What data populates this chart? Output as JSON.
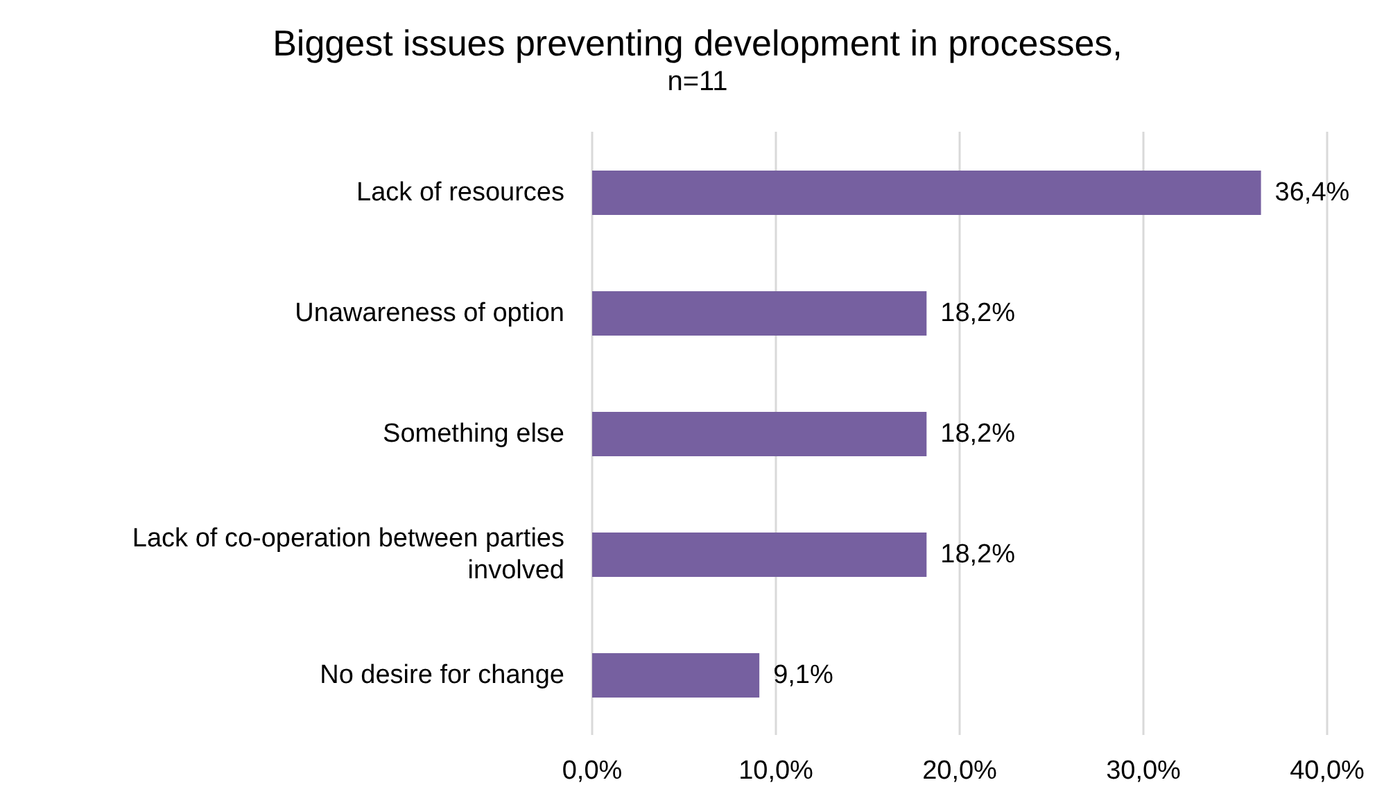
{
  "chart_data": {
    "type": "bar",
    "orientation": "horizontal",
    "title": "Biggest issues preventing development in processes,",
    "subtitle": "n=11",
    "categories": [
      "Lack of resources",
      "Unawareness of option",
      "Something else",
      "Lack of co-operation between parties involved",
      "No desire for change"
    ],
    "values": [
      36.4,
      18.2,
      18.2,
      18.2,
      9.1
    ],
    "value_labels": [
      "36,4%",
      "18,2%",
      "18,2%",
      "18,2%",
      "9,1%"
    ],
    "color": "#7660a0",
    "xlim": [
      0,
      40
    ],
    "xticks": [
      {
        "value": 0,
        "label": "0,0%"
      },
      {
        "value": 10,
        "label": "10,0%"
      },
      {
        "value": 20,
        "label": "20,0%"
      },
      {
        "value": 30,
        "label": "30,0%"
      },
      {
        "value": 40,
        "label": "40,0%"
      }
    ],
    "grid": "x",
    "legend": false
  }
}
